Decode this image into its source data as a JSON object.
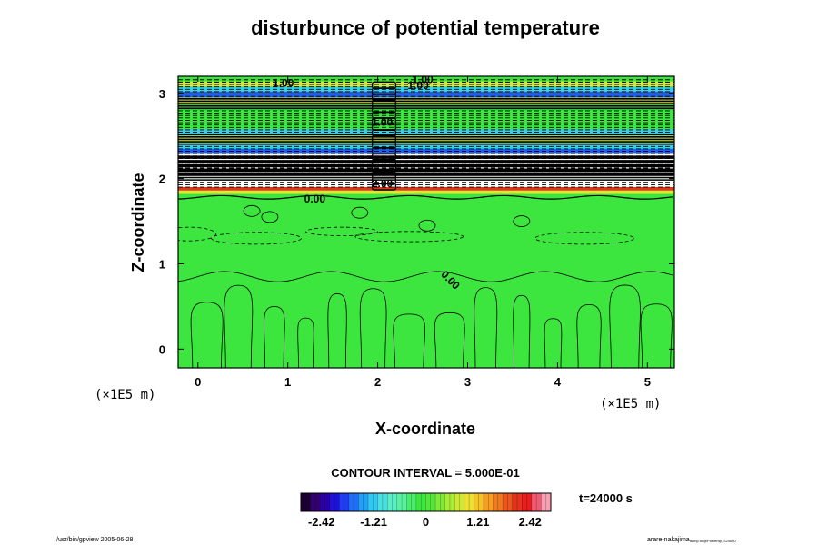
{
  "chart_data": {
    "type": "heatmap",
    "title": "disturbunce of potential temperature",
    "xlabel": "X-coordinate",
    "ylabel": "Z-coordinate",
    "x_unit": "(×1E5 m)",
    "z_unit": "(×1E5 m)",
    "xlim": [
      -0.22,
      5.3
    ],
    "ylim": [
      -0.22,
      3.2
    ],
    "x_ticks": [
      0,
      1,
      2,
      3,
      4,
      5
    ],
    "y_ticks": [
      0,
      1,
      2,
      3
    ],
    "x_tick_labels": [
      "0",
      "1",
      "2",
      "3",
      "4",
      "5"
    ],
    "y_tick_labels": [
      "0",
      "1",
      "2",
      "3"
    ],
    "contour_labels": [
      {
        "text": "0.00",
        "x": 1.3,
        "z": 1.72,
        "rotate": 0
      },
      {
        "text": "0.00",
        "x": 2.78,
        "z": 0.78,
        "rotate": 45
      },
      {
        "text": "1.00",
        "x": 0.95,
        "z": 3.08,
        "rotate": 0
      },
      {
        "text": "1.00",
        "x": 2.45,
        "z": 3.05,
        "rotate": 0
      },
      {
        "text": "1.00",
        "x": 2.5,
        "z": 3.12,
        "rotate": 0
      },
      {
        "text": "1.00",
        "x": 2.05,
        "z": 2.62,
        "rotate": 0
      },
      {
        "text": "2.00",
        "x": 2.05,
        "z": 1.9,
        "rotate": 0
      }
    ],
    "contour_interval": "CONTOUR INTERVAL = 5.000E-01",
    "time_label": "t=24000 s",
    "colorbar": {
      "min": -2.9,
      "max": 2.9,
      "tick_values": [
        -2.42,
        -1.21,
        0,
        1.21,
        2.42
      ],
      "tick_labels": [
        "-2.42",
        "-1.21",
        "0",
        "1.21",
        "2.42"
      ],
      "colors": [
        "#1a0033",
        "#33006e",
        "#2a00a6",
        "#1f12d8",
        "#1f3df2",
        "#1f6ef5",
        "#22a0f5",
        "#33c8ef",
        "#4ae0e0",
        "#5aeec8",
        "#5af0a0",
        "#4aec6e",
        "#3de63f",
        "#55e63a",
        "#80e838",
        "#a8ea36",
        "#cfe835",
        "#ece030",
        "#f5c22a",
        "#f59e24",
        "#f07a1f",
        "#ea561c",
        "#e2331c",
        "#e81e1e",
        "#f05a73",
        "#f7a0b4"
      ]
    },
    "band_colors": {
      "field": "#3de63f",
      "blue_band": "#1f5ef2",
      "cyan_band": "#33d0e8",
      "yellow_band": "#d8e835",
      "red_band": "#e2331c"
    },
    "footer_left": "/usr/bin/gpview 2005-06-28",
    "footer_right": "arare-nakajima",
    "footer_right_sub": "dump.nc@PotTemp,t=24000"
  }
}
